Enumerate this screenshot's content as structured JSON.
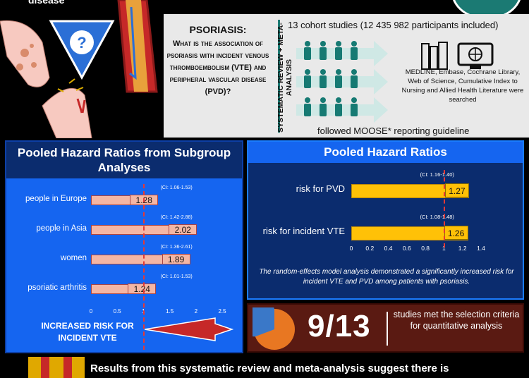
{
  "top_left_title": "disease",
  "question": {
    "title": "PSORIASIS:",
    "text": "What is the association of psoriasis with incident venous thromboembolism (VTE) and peripheral vascular disease (PVD)?",
    "icon": "question-mark-icon"
  },
  "methods": {
    "vertical_label": "SYSTEMATIC REVIEW + META-ANALYSIS",
    "cohort": "13 cohort studies (12 435 982 participants included)",
    "databases": "MEDLINE, Embase, Cochrane Library, Web of Science, Cumulative Index to Nursing and Allied Health Literature were searched",
    "guideline": "followed MOOSE* reporting guideline"
  },
  "subgroup": {
    "title": "Pooled Hazard Ratios from Subgroup Analyses",
    "callout": "INCREASED RISK FOR INCIDENT VTE"
  },
  "pooled": {
    "title": "Pooled Hazard Ratios",
    "note": "The random-effects model analysis demonstrated a significantly increased risk for incident VTE and PVD among patients with psoriasis."
  },
  "fraction": {
    "value": "9/13",
    "text": "studies met the selection criteria for quantitative analysis",
    "pie_fraction": 0.6923
  },
  "bottom_text": "Results from this systematic review and meta-analysis suggest there is",
  "colors": {
    "blue": "#1565f0",
    "navy": "#0b2c6e",
    "teal": "#1b7a73",
    "gold": "#ffc107",
    "salmon": "#f4b6a4",
    "maroon": "#5a1a12",
    "red": "#e53935"
  },
  "chart_data": [
    {
      "type": "bar",
      "title": "Pooled Hazard Ratios from Subgroup Analyses",
      "orientation": "horizontal",
      "categories": [
        "people in Europe",
        "people in Asia",
        "women",
        "psoriatic arthritis"
      ],
      "values": [
        1.28,
        2.02,
        1.89,
        1.24
      ],
      "value_labels": [
        "1.28",
        "2.02",
        "1.89",
        "1.24"
      ],
      "ci": [
        "(CI: 1.06-1.53)",
        "(CI: 1.42-2.88)",
        "(CI: 1.36-2.61)",
        "(CI: 1.01-1.53)"
      ],
      "xlim": [
        0,
        2.5
      ],
      "ticks": [
        "0",
        "0.5",
        "1",
        "1.5",
        "2",
        "2.5"
      ],
      "reference_line": 1
    },
    {
      "type": "bar",
      "title": "Pooled Hazard Ratios",
      "orientation": "horizontal",
      "categories": [
        "risk for PVD",
        "risk for incident VTE"
      ],
      "values": [
        1.27,
        1.26
      ],
      "value_labels": [
        "1.27",
        "1.26"
      ],
      "ci": [
        "(CI: 1.16-1.40)",
        "(CI: 1.08-1.48)"
      ],
      "xlim": [
        0,
        1.4
      ],
      "ticks": [
        "0",
        "0.2",
        "0.4",
        "0.6",
        "0.8",
        "1",
        "1.2",
        "1.4"
      ],
      "reference_line": 1
    }
  ]
}
